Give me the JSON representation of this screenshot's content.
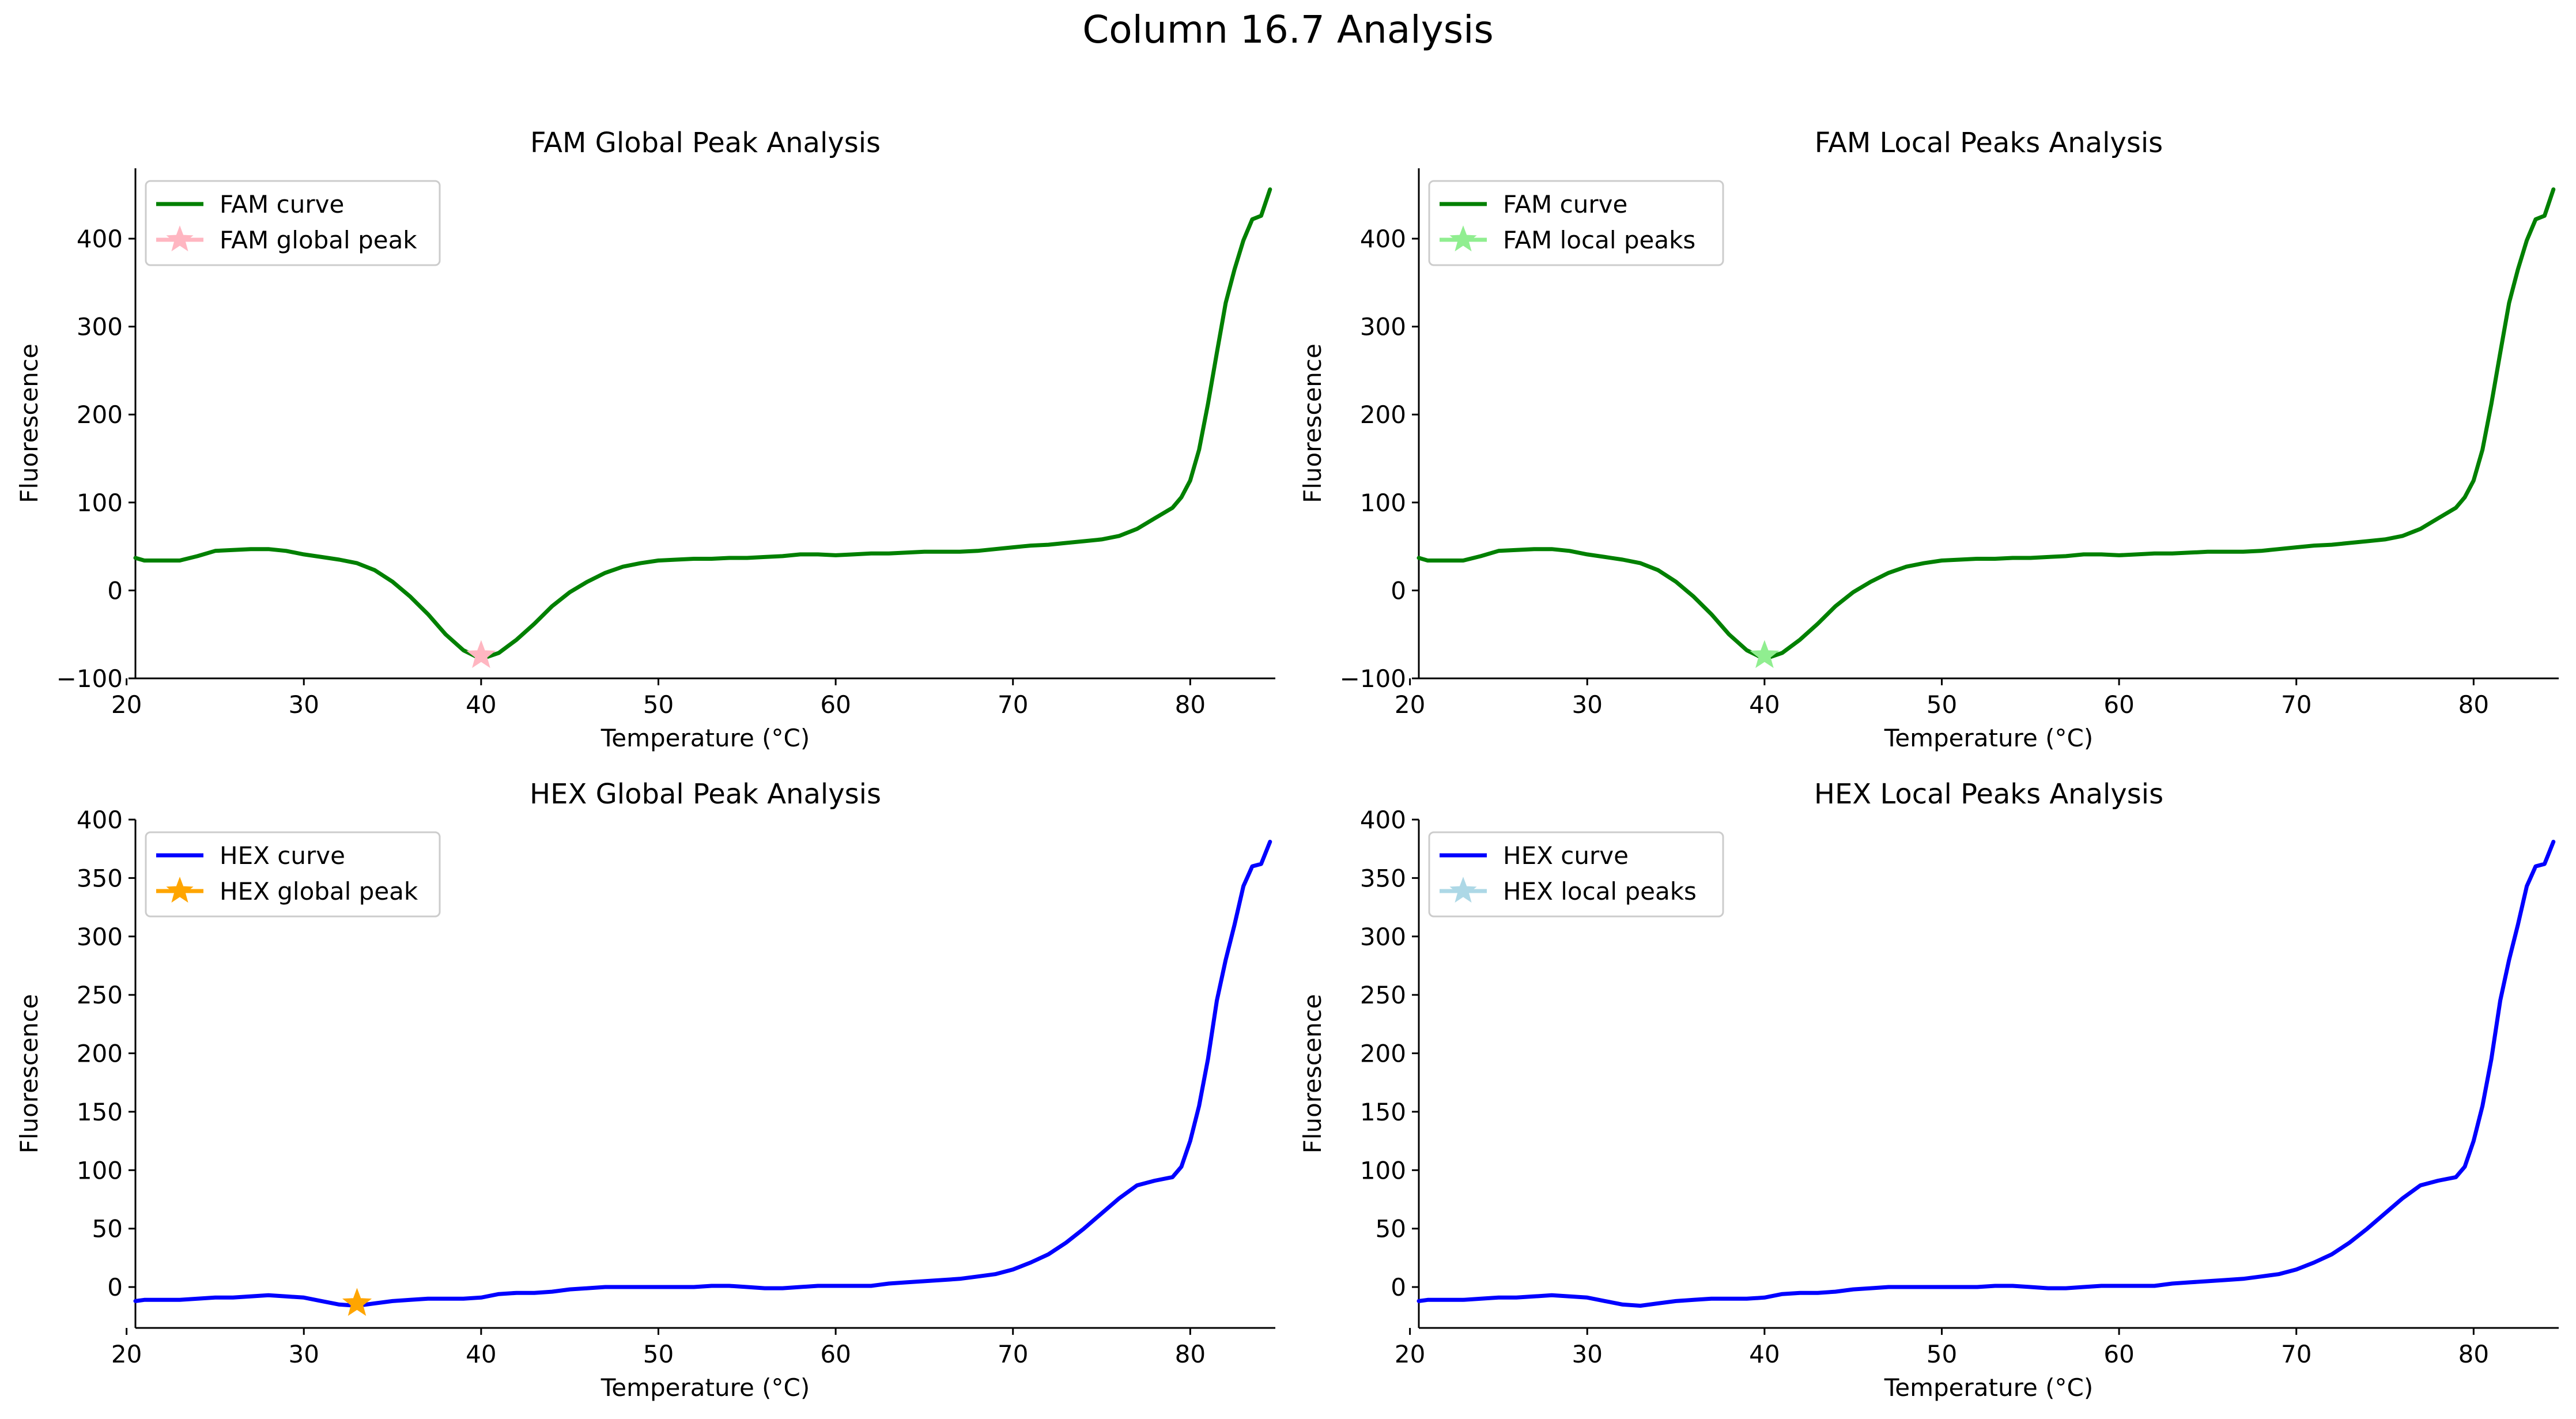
{
  "figure": {
    "title": "Column 16.7 Analysis"
  },
  "chart_data": [
    {
      "type": "line",
      "title": "FAM Global Peak Analysis",
      "xlabel": "Temperature (°C)",
      "ylabel": "Fluorescence",
      "xlim": [
        20.5,
        84.8
      ],
      "ylim": [
        -100,
        480
      ],
      "xticks": [
        20,
        30,
        40,
        50,
        60,
        70,
        80
      ],
      "yticks": [
        -100,
        0,
        100,
        200,
        300,
        400
      ],
      "legend_position": "upper-left",
      "series": [
        {
          "name": "FAM curve",
          "color": "#008000",
          "style": "line",
          "x": [
            20.5,
            21,
            22,
            23,
            24,
            25,
            26,
            27,
            28,
            29,
            30,
            31,
            32,
            33,
            34,
            35,
            36,
            37,
            38,
            39,
            40,
            41,
            42,
            43,
            44,
            45,
            46,
            47,
            48,
            49,
            50,
            51,
            52,
            53,
            54,
            55,
            56,
            57,
            58,
            59,
            60,
            61,
            62,
            63,
            64,
            65,
            66,
            67,
            68,
            69,
            70,
            71,
            72,
            73,
            74,
            75,
            76,
            77,
            78,
            79,
            79.5,
            80,
            80.5,
            81,
            81.5,
            82,
            82.5,
            83,
            83.5,
            84,
            84.5
          ],
          "y": [
            37,
            34,
            34,
            34,
            39,
            45,
            46,
            47,
            47,
            45,
            41,
            38,
            35,
            31,
            23,
            10,
            -7,
            -27,
            -50,
            -68,
            -78,
            -71,
            -56,
            -38,
            -18,
            -2,
            10,
            20,
            27,
            31,
            34,
            35,
            36,
            36,
            37,
            37,
            38,
            39,
            41,
            41,
            40,
            41,
            42,
            42,
            43,
            44,
            44,
            44,
            45,
            47,
            49,
            51,
            52,
            54,
            56,
            58,
            62,
            70,
            82,
            94,
            106,
            125,
            160,
            212,
            270,
            327,
            365,
            398,
            422,
            426,
            456
          ]
        },
        {
          "name": "FAM global peak",
          "color": "#ffb6c1",
          "style": "star",
          "x": [
            40
          ],
          "y": [
            -74
          ]
        }
      ]
    },
    {
      "type": "line",
      "title": "FAM Local Peaks Analysis",
      "xlabel": "Temperature (°C)",
      "ylabel": "Fluorescence",
      "xlim": [
        20.5,
        84.8
      ],
      "ylim": [
        -100,
        480
      ],
      "xticks": [
        20,
        30,
        40,
        50,
        60,
        70,
        80
      ],
      "yticks": [
        -100,
        0,
        100,
        200,
        300,
        400
      ],
      "legend_position": "upper-left",
      "series": [
        {
          "name": "FAM curve",
          "color": "#008000",
          "style": "line",
          "x": [
            20.5,
            21,
            22,
            23,
            24,
            25,
            26,
            27,
            28,
            29,
            30,
            31,
            32,
            33,
            34,
            35,
            36,
            37,
            38,
            39,
            40,
            41,
            42,
            43,
            44,
            45,
            46,
            47,
            48,
            49,
            50,
            51,
            52,
            53,
            54,
            55,
            56,
            57,
            58,
            59,
            60,
            61,
            62,
            63,
            64,
            65,
            66,
            67,
            68,
            69,
            70,
            71,
            72,
            73,
            74,
            75,
            76,
            77,
            78,
            79,
            79.5,
            80,
            80.5,
            81,
            81.5,
            82,
            82.5,
            83,
            83.5,
            84,
            84.5
          ],
          "y": [
            37,
            34,
            34,
            34,
            39,
            45,
            46,
            47,
            47,
            45,
            41,
            38,
            35,
            31,
            23,
            10,
            -7,
            -27,
            -50,
            -68,
            -78,
            -71,
            -56,
            -38,
            -18,
            -2,
            10,
            20,
            27,
            31,
            34,
            35,
            36,
            36,
            37,
            37,
            38,
            39,
            41,
            41,
            40,
            41,
            42,
            42,
            43,
            44,
            44,
            44,
            45,
            47,
            49,
            51,
            52,
            54,
            56,
            58,
            62,
            70,
            82,
            94,
            106,
            125,
            160,
            212,
            270,
            327,
            365,
            398,
            422,
            426,
            456
          ]
        },
        {
          "name": "FAM local peaks",
          "color": "#90ee90",
          "style": "star",
          "x": [
            40
          ],
          "y": [
            -74
          ]
        }
      ]
    },
    {
      "type": "line",
      "title": "HEX Global Peak Analysis",
      "xlabel": "Temperature (°C)",
      "ylabel": "Fluorescence",
      "xlim": [
        20.5,
        84.8
      ],
      "ylim": [
        -35,
        400
      ],
      "xticks": [
        20,
        30,
        40,
        50,
        60,
        70,
        80
      ],
      "yticks": [
        0,
        50,
        100,
        150,
        200,
        250,
        300,
        350,
        400
      ],
      "legend_position": "upper-left",
      "series": [
        {
          "name": "HEX curve",
          "color": "#0000ff",
          "style": "line",
          "x": [
            20.5,
            21,
            22,
            23,
            24,
            25,
            26,
            27,
            28,
            29,
            30,
            31,
            32,
            33,
            34,
            35,
            36,
            37,
            38,
            39,
            40,
            41,
            42,
            43,
            44,
            45,
            46,
            47,
            48,
            49,
            50,
            51,
            52,
            53,
            54,
            55,
            56,
            57,
            58,
            59,
            60,
            61,
            62,
            63,
            64,
            65,
            66,
            67,
            68,
            69,
            70,
            71,
            72,
            73,
            74,
            75,
            76,
            77,
            78,
            79,
            79.5,
            80,
            80.5,
            81,
            81.5,
            82,
            82.5,
            83,
            83.5,
            84,
            84.5
          ],
          "y": [
            -12,
            -11,
            -11,
            -11,
            -10,
            -9,
            -9,
            -8,
            -7,
            -8,
            -9,
            -12,
            -15,
            -16,
            -14,
            -12,
            -11,
            -10,
            -10,
            -10,
            -9,
            -6,
            -5,
            -5,
            -4,
            -2,
            -1,
            0,
            0,
            0,
            0,
            0,
            0,
            1,
            1,
            0,
            -1,
            -1,
            0,
            1,
            1,
            1,
            1,
            3,
            4,
            5,
            6,
            7,
            9,
            11,
            15,
            21,
            28,
            38,
            50,
            63,
            76,
            87,
            91,
            94,
            103,
            125,
            155,
            195,
            245,
            280,
            310,
            343,
            360,
            362,
            381
          ]
        },
        {
          "name": "HEX global peak",
          "color": "#ffa500",
          "style": "star",
          "x": [
            33
          ],
          "y": [
            -14
          ]
        }
      ]
    },
    {
      "type": "line",
      "title": "HEX Local Peaks Analysis",
      "xlabel": "Temperature (°C)",
      "ylabel": "Fluorescence",
      "xlim": [
        20.5,
        84.8
      ],
      "ylim": [
        -35,
        400
      ],
      "xticks": [
        20,
        30,
        40,
        50,
        60,
        70,
        80
      ],
      "yticks": [
        0,
        50,
        100,
        150,
        200,
        250,
        300,
        350,
        400
      ],
      "legend_position": "upper-left",
      "series": [
        {
          "name": "HEX curve",
          "color": "#0000ff",
          "style": "line",
          "x": [
            20.5,
            21,
            22,
            23,
            24,
            25,
            26,
            27,
            28,
            29,
            30,
            31,
            32,
            33,
            34,
            35,
            36,
            37,
            38,
            39,
            40,
            41,
            42,
            43,
            44,
            45,
            46,
            47,
            48,
            49,
            50,
            51,
            52,
            53,
            54,
            55,
            56,
            57,
            58,
            59,
            60,
            61,
            62,
            63,
            64,
            65,
            66,
            67,
            68,
            69,
            70,
            71,
            72,
            73,
            74,
            75,
            76,
            77,
            78,
            79,
            79.5,
            80,
            80.5,
            81,
            81.5,
            82,
            82.5,
            83,
            83.5,
            84,
            84.5
          ],
          "y": [
            -12,
            -11,
            -11,
            -11,
            -10,
            -9,
            -9,
            -8,
            -7,
            -8,
            -9,
            -12,
            -15,
            -16,
            -14,
            -12,
            -11,
            -10,
            -10,
            -10,
            -9,
            -6,
            -5,
            -5,
            -4,
            -2,
            -1,
            0,
            0,
            0,
            0,
            0,
            0,
            1,
            1,
            0,
            -1,
            -1,
            0,
            1,
            1,
            1,
            1,
            3,
            4,
            5,
            6,
            7,
            9,
            11,
            15,
            21,
            28,
            38,
            50,
            63,
            76,
            87,
            91,
            94,
            103,
            125,
            155,
            195,
            245,
            280,
            310,
            343,
            360,
            362,
            381
          ]
        },
        {
          "name": "HEX local peaks",
          "color": "#add8e6",
          "style": "star",
          "x": [],
          "y": []
        }
      ]
    }
  ]
}
